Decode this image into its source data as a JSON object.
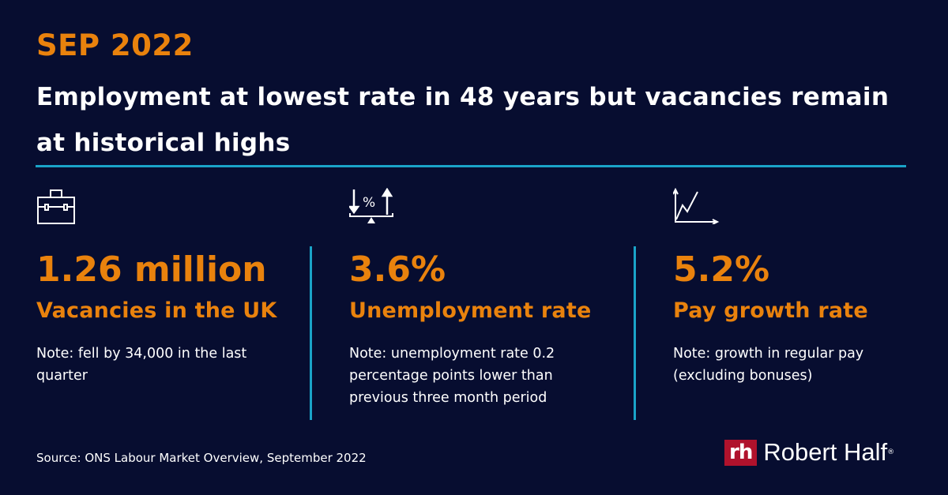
{
  "header": {
    "date": "SEP 2022",
    "title": "Employment at lowest rate in 48 years but vacancies remain at historical highs"
  },
  "colors": {
    "background": "#070d30",
    "accent": "#e9820d",
    "rule": "#1aa3c8",
    "logo": "#b0122c"
  },
  "stats": [
    {
      "icon": "briefcase-icon",
      "value": "1.26 million",
      "label": "Vacancies in the UK",
      "note": "Note: fell by 34,000 in the last quarter"
    },
    {
      "icon": "percent-scale-icon",
      "value": "3.6%",
      "label": "Unemployment rate",
      "note": "Note: unemployment rate 0.2 percentage points lower than previous three month period"
    },
    {
      "icon": "line-chart-icon",
      "value": "5.2%",
      "label": "Pay growth rate",
      "note": "Note: growth in regular pay (excluding bonuses)"
    }
  ],
  "footer": {
    "source": "Source: ONS Labour Market Overview, September 2022",
    "logo_mark": "rh",
    "logo_text": "Robert Half",
    "logo_reg": "®"
  }
}
